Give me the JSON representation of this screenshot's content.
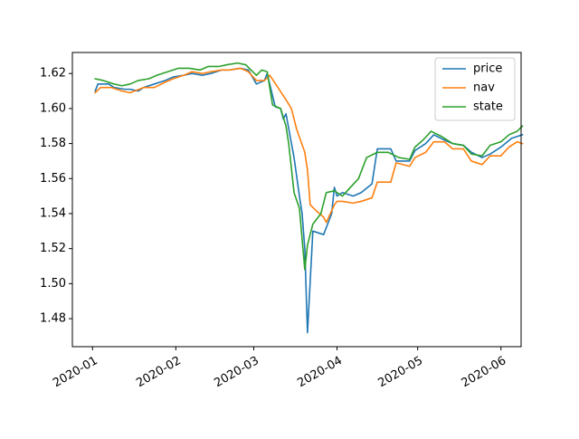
{
  "chart_data": {
    "type": "line",
    "x_axis": {
      "kind": "date",
      "range": [
        "2020-01-01",
        "2020-06-01"
      ],
      "ticks": [
        {
          "date": "2020-01-01",
          "label": "2020-01"
        },
        {
          "date": "2020-02-01",
          "label": "2020-02"
        },
        {
          "date": "2020-03-01",
          "label": "2020-03"
        },
        {
          "date": "2020-04-01",
          "label": "2020-04"
        },
        {
          "date": "2020-05-01",
          "label": "2020-05"
        },
        {
          "date": "2020-06-01",
          "label": "2020-06"
        }
      ]
    },
    "y_axis": {
      "range": [
        1.464,
        1.632
      ],
      "ticks": [
        {
          "value": 1.48,
          "label": "1.48"
        },
        {
          "value": 1.5,
          "label": "1.50"
        },
        {
          "value": 1.52,
          "label": "1.52"
        },
        {
          "value": 1.54,
          "label": "1.54"
        },
        {
          "value": 1.56,
          "label": "1.56"
        },
        {
          "value": 1.58,
          "label": "1.58"
        },
        {
          "value": 1.6,
          "label": "1.60"
        },
        {
          "value": 1.62,
          "label": "1.62"
        }
      ]
    },
    "grid": false,
    "legend_position": "top-right",
    "series": [
      {
        "name": "price",
        "color": "#1f77b4",
        "points": [
          [
            "2020-01-02",
            1.61
          ],
          [
            "2020-01-03",
            1.614
          ],
          [
            "2020-01-07",
            1.614
          ],
          [
            "2020-01-09",
            1.612
          ],
          [
            "2020-01-13",
            1.611
          ],
          [
            "2020-01-15",
            1.611
          ],
          [
            "2020-01-18",
            1.61
          ],
          [
            "2020-01-20",
            1.612
          ],
          [
            "2020-01-24",
            1.614
          ],
          [
            "2020-01-28",
            1.616
          ],
          [
            "2020-01-31",
            1.618
          ],
          [
            "2020-02-04",
            1.619
          ],
          [
            "2020-02-07",
            1.62
          ],
          [
            "2020-02-11",
            1.619
          ],
          [
            "2020-02-14",
            1.62
          ],
          [
            "2020-02-18",
            1.622
          ],
          [
            "2020-02-21",
            1.622
          ],
          [
            "2020-02-25",
            1.623
          ],
          [
            "2020-02-28",
            1.622
          ],
          [
            "2020-03-02",
            1.614
          ],
          [
            "2020-03-05",
            1.616
          ],
          [
            "2020-03-06",
            1.62
          ],
          [
            "2020-03-09",
            1.601
          ],
          [
            "2020-03-11",
            1.6
          ],
          [
            "2020-03-12",
            1.594
          ],
          [
            "2020-03-13",
            1.597
          ],
          [
            "2020-03-16",
            1.572
          ],
          [
            "2020-03-18",
            1.55
          ],
          [
            "2020-03-19",
            1.54
          ],
          [
            "2020-03-20",
            1.52
          ],
          [
            "2020-03-21",
            1.472
          ],
          [
            "2020-03-23",
            1.53
          ],
          [
            "2020-03-27",
            1.528
          ],
          [
            "2020-03-30",
            1.54
          ],
          [
            "2020-03-31",
            1.555
          ],
          [
            "2020-04-01",
            1.55
          ],
          [
            "2020-04-03",
            1.552
          ],
          [
            "2020-04-07",
            1.55
          ],
          [
            "2020-04-10",
            1.552
          ],
          [
            "2020-04-14",
            1.557
          ],
          [
            "2020-04-16",
            1.577
          ],
          [
            "2020-04-21",
            1.577
          ],
          [
            "2020-04-23",
            1.57
          ],
          [
            "2020-04-28",
            1.57
          ],
          [
            "2020-04-30",
            1.576
          ],
          [
            "2020-05-04",
            1.58
          ],
          [
            "2020-05-07",
            1.585
          ],
          [
            "2020-05-11",
            1.582
          ],
          [
            "2020-05-14",
            1.58
          ],
          [
            "2020-05-18",
            1.579
          ],
          [
            "2020-05-21",
            1.575
          ],
          [
            "2020-05-25",
            1.572
          ],
          [
            "2020-05-28",
            1.574
          ],
          [
            "2020-06-01",
            1.578
          ],
          [
            "2020-06-05",
            1.583
          ],
          [
            "2020-06-09",
            1.585
          ]
        ]
      },
      {
        "name": "nav",
        "color": "#ff7f0e",
        "points": [
          [
            "2020-01-02",
            1.609
          ],
          [
            "2020-01-04",
            1.612
          ],
          [
            "2020-01-08",
            1.612
          ],
          [
            "2020-01-12",
            1.61
          ],
          [
            "2020-01-15",
            1.609
          ],
          [
            "2020-01-20",
            1.612
          ],
          [
            "2020-01-24",
            1.612
          ],
          [
            "2020-01-28",
            1.615
          ],
          [
            "2020-01-31",
            1.617
          ],
          [
            "2020-02-04",
            1.619
          ],
          [
            "2020-02-07",
            1.621
          ],
          [
            "2020-02-11",
            1.62
          ],
          [
            "2020-02-14",
            1.621
          ],
          [
            "2020-02-18",
            1.622
          ],
          [
            "2020-02-21",
            1.622
          ],
          [
            "2020-02-25",
            1.623
          ],
          [
            "2020-02-28",
            1.621
          ],
          [
            "2020-03-02",
            1.616
          ],
          [
            "2020-03-05",
            1.616
          ],
          [
            "2020-03-07",
            1.619
          ],
          [
            "2020-03-10",
            1.612
          ],
          [
            "2020-03-13",
            1.605
          ],
          [
            "2020-03-15",
            1.6
          ],
          [
            "2020-03-17",
            1.588
          ],
          [
            "2020-03-20",
            1.575
          ],
          [
            "2020-03-21",
            1.565
          ],
          [
            "2020-03-22",
            1.545
          ],
          [
            "2020-03-24",
            1.542
          ],
          [
            "2020-03-27",
            1.538
          ],
          [
            "2020-03-28",
            1.535
          ],
          [
            "2020-03-31",
            1.545
          ],
          [
            "2020-04-01",
            1.547
          ],
          [
            "2020-04-03",
            1.547
          ],
          [
            "2020-04-07",
            1.546
          ],
          [
            "2020-04-10",
            1.547
          ],
          [
            "2020-04-14",
            1.549
          ],
          [
            "2020-04-16",
            1.558
          ],
          [
            "2020-04-21",
            1.558
          ],
          [
            "2020-04-23",
            1.569
          ],
          [
            "2020-04-28",
            1.567
          ],
          [
            "2020-04-30",
            1.572
          ],
          [
            "2020-05-04",
            1.575
          ],
          [
            "2020-05-07",
            1.581
          ],
          [
            "2020-05-11",
            1.581
          ],
          [
            "2020-05-14",
            1.577
          ],
          [
            "2020-05-18",
            1.577
          ],
          [
            "2020-05-21",
            1.57
          ],
          [
            "2020-05-25",
            1.568
          ],
          [
            "2020-05-28",
            1.573
          ],
          [
            "2020-06-01",
            1.573
          ],
          [
            "2020-06-04",
            1.578
          ],
          [
            "2020-06-07",
            1.581
          ],
          [
            "2020-06-09",
            1.58
          ]
        ]
      },
      {
        "name": "state",
        "color": "#2ca02c",
        "points": [
          [
            "2020-01-02",
            1.617
          ],
          [
            "2020-01-05",
            1.616
          ],
          [
            "2020-01-09",
            1.614
          ],
          [
            "2020-01-12",
            1.613
          ],
          [
            "2020-01-15",
            1.614
          ],
          [
            "2020-01-18",
            1.616
          ],
          [
            "2020-01-22",
            1.617
          ],
          [
            "2020-01-25",
            1.619
          ],
          [
            "2020-01-29",
            1.621
          ],
          [
            "2020-02-02",
            1.623
          ],
          [
            "2020-02-06",
            1.623
          ],
          [
            "2020-02-10",
            1.622
          ],
          [
            "2020-02-13",
            1.624
          ],
          [
            "2020-02-17",
            1.624
          ],
          [
            "2020-02-20",
            1.625
          ],
          [
            "2020-02-24",
            1.626
          ],
          [
            "2020-02-27",
            1.625
          ],
          [
            "2020-03-02",
            1.619
          ],
          [
            "2020-03-04",
            1.622
          ],
          [
            "2020-03-06",
            1.621
          ],
          [
            "2020-03-08",
            1.602
          ],
          [
            "2020-03-11",
            1.6
          ],
          [
            "2020-03-13",
            1.59
          ],
          [
            "2020-03-14",
            1.58
          ],
          [
            "2020-03-16",
            1.552
          ],
          [
            "2020-03-18",
            1.543
          ],
          [
            "2020-03-20",
            1.508
          ],
          [
            "2020-03-21",
            1.522
          ],
          [
            "2020-03-23",
            1.534
          ],
          [
            "2020-03-26",
            1.54
          ],
          [
            "2020-03-28",
            1.552
          ],
          [
            "2020-03-31",
            1.553
          ],
          [
            "2020-04-03",
            1.55
          ],
          [
            "2020-04-06",
            1.555
          ],
          [
            "2020-04-09",
            1.56
          ],
          [
            "2020-04-12",
            1.572
          ],
          [
            "2020-04-16",
            1.575
          ],
          [
            "2020-04-20",
            1.575
          ],
          [
            "2020-04-24",
            1.572
          ],
          [
            "2020-04-28",
            1.571
          ],
          [
            "2020-04-30",
            1.578
          ],
          [
            "2020-05-03",
            1.582
          ],
          [
            "2020-05-06",
            1.587
          ],
          [
            "2020-05-10",
            1.584
          ],
          [
            "2020-05-14",
            1.58
          ],
          [
            "2020-05-18",
            1.579
          ],
          [
            "2020-05-21",
            1.574
          ],
          [
            "2020-05-25",
            1.573
          ],
          [
            "2020-05-28",
            1.579
          ],
          [
            "2020-06-01",
            1.581
          ],
          [
            "2020-06-04",
            1.585
          ],
          [
            "2020-06-07",
            1.587
          ],
          [
            "2020-06-09",
            1.59
          ]
        ]
      }
    ]
  }
}
